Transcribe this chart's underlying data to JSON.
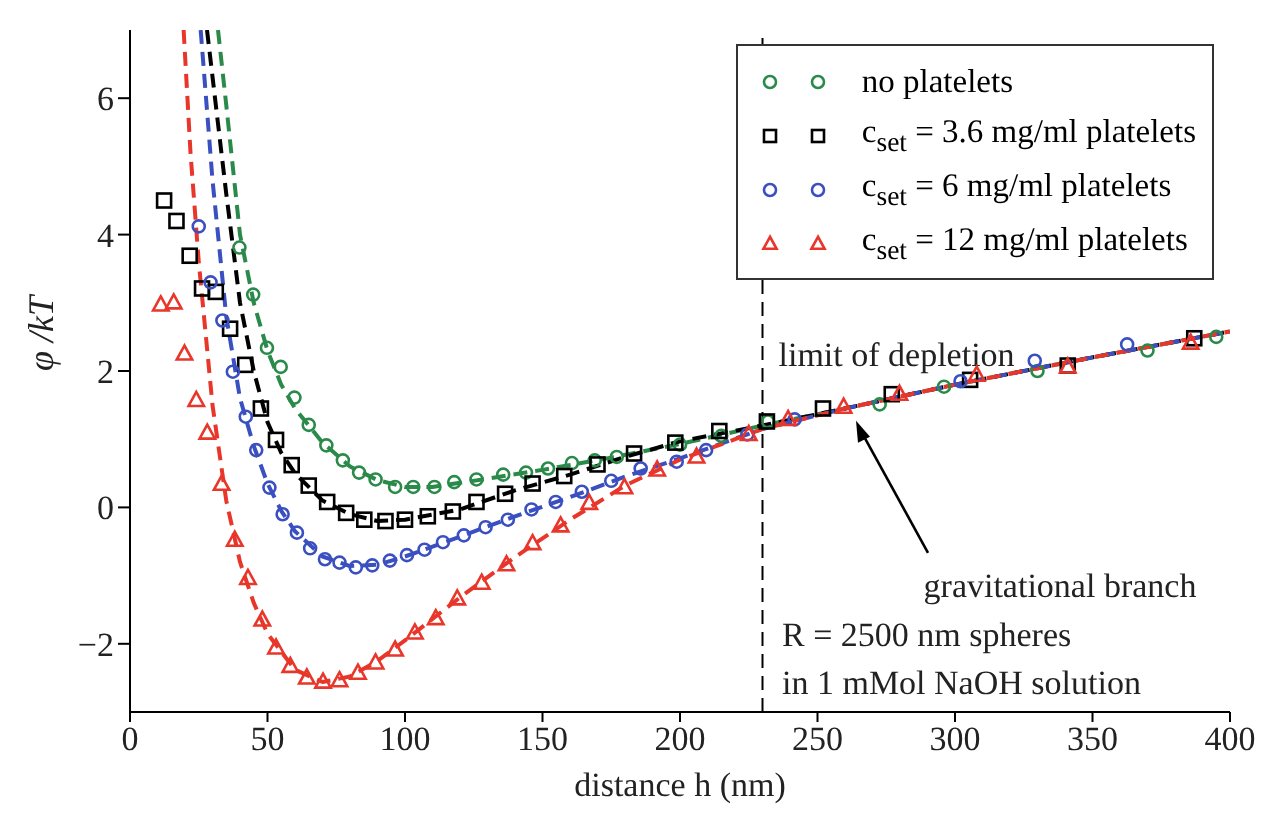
{
  "chart_data": {
    "type": "scatter",
    "xlabel": "distance h (nm)",
    "ylabel": "φ /kT",
    "xlim": [
      0,
      400
    ],
    "ylim": [
      -3,
      7
    ],
    "xticks": [
      0,
      50,
      100,
      150,
      200,
      250,
      300,
      350,
      400
    ],
    "yticks": [
      -2,
      0,
      2,
      4,
      6
    ],
    "grid": false,
    "legend": "top right",
    "series": [
      {
        "name": "no platelets",
        "color": "#2a8a4a",
        "marker": "circle",
        "x": [
          39.8,
          44.8,
          49.8,
          54.8,
          59.8,
          65,
          71.4,
          77.4,
          83.3,
          89.3,
          96.4,
          103,
          110.7,
          117.9,
          126,
          135.7,
          144,
          152,
          160.7,
          169,
          177,
          200,
          215,
          232,
          272.6,
          296,
          330,
          370,
          395
        ],
        "values": [
          3.81,
          3.12,
          2.34,
          2.06,
          1.61,
          1.21,
          0.91,
          0.69,
          0.51,
          0.41,
          0.3,
          0.3,
          0.3,
          0.37,
          0.41,
          0.48,
          0.51,
          0.57,
          0.65,
          0.69,
          0.74,
          0.92,
          1.05,
          1.26,
          1.51,
          1.77,
          2.0,
          2.3,
          2.5
        ]
      },
      {
        "name": "c$_{set}$ = 3.6 mg/ml platelets",
        "color": "#000000",
        "marker": "square",
        "x": [
          12.4,
          16.9,
          21.7,
          26.2,
          31.2,
          36.4,
          41.9,
          47.6,
          53.1,
          58.8,
          65,
          71.7,
          78.6,
          85.2,
          92.9,
          100,
          108.3,
          117.4,
          126,
          136.4,
          146.4,
          157.9,
          170,
          183.3,
          198.3,
          214.3,
          231.6,
          252,
          277,
          305.5,
          341,
          387
        ],
        "values": [
          4.5,
          4.2,
          3.69,
          3.21,
          3.16,
          2.62,
          2.09,
          1.45,
          0.99,
          0.62,
          0.32,
          0.08,
          -0.08,
          -0.18,
          -0.2,
          -0.18,
          -0.13,
          -0.06,
          0.08,
          0.2,
          0.35,
          0.46,
          0.63,
          0.79,
          0.95,
          1.12,
          1.26,
          1.45,
          1.66,
          1.87,
          2.08,
          2.48
        ]
      },
      {
        "name": "c$_{set}$ = 6 mg/ml platelets",
        "color": "#3a4fc0",
        "marker": "circle",
        "x": [
          25,
          29.3,
          33.6,
          37.4,
          42.1,
          45.9,
          50.7,
          55.5,
          60.7,
          65.5,
          70.9,
          76.2,
          82.1,
          88.1,
          94.5,
          100.7,
          107.1,
          113.8,
          121.4,
          129.3,
          137.4,
          146,
          154.8,
          164.3,
          175,
          185.7,
          198.8,
          209.5,
          224.5,
          241.7,
          302,
          329,
          362.6
        ],
        "values": [
          4.12,
          3.3,
          2.74,
          1.99,
          1.33,
          0.84,
          0.29,
          -0.1,
          -0.37,
          -0.6,
          -0.76,
          -0.81,
          -0.88,
          -0.85,
          -0.78,
          -0.7,
          -0.62,
          -0.51,
          -0.41,
          -0.29,
          -0.18,
          -0.03,
          0.08,
          0.23,
          0.39,
          0.57,
          0.67,
          0.84,
          1.07,
          1.29,
          1.85,
          2.15,
          2.39
        ]
      },
      {
        "name": "c$_{set}$ = 12 mg/ml platelets",
        "color": "#e8362a",
        "marker": "triangle",
        "x": [
          11.2,
          15.9,
          19.8,
          24.1,
          28.1,
          33.3,
          38.1,
          42.9,
          48.1,
          53.1,
          58.3,
          64.3,
          70.2,
          76.2,
          82.9,
          89.3,
          96.4,
          103.6,
          111.2,
          119,
          127.9,
          136.9,
          146.4,
          156.6,
          167,
          179.8,
          191.7,
          206,
          225,
          239.3,
          259.5,
          279.8,
          307.9,
          341,
          385.7
        ],
        "values": [
          2.97,
          3.0,
          2.25,
          1.57,
          1.09,
          0.34,
          -0.48,
          -1.04,
          -1.65,
          -2.06,
          -2.33,
          -2.5,
          -2.56,
          -2.54,
          -2.43,
          -2.28,
          -2.09,
          -1.84,
          -1.63,
          -1.34,
          -1.11,
          -0.84,
          -0.53,
          -0.27,
          0.06,
          0.29,
          0.55,
          0.74,
          1.07,
          1.29,
          1.47,
          1.66,
          1.94,
          2.06,
          2.41
        ]
      },
      {
        "type": "line",
        "color": "#2a8a4a",
        "marker": "none",
        "line_style": "dashed",
        "x": [
          32,
          35,
          40,
          45,
          50,
          55,
          60,
          70,
          80,
          90,
          100,
          110,
          130,
          150,
          175,
          200,
          230,
          260,
          300,
          350,
          400
        ],
        "values": [
          7,
          5.9,
          4.0,
          3.0,
          2.3,
          1.8,
          1.45,
          0.95,
          0.6,
          0.4,
          0.3,
          0.3,
          0.42,
          0.55,
          0.73,
          0.93,
          1.2,
          1.45,
          1.8,
          2.2,
          2.58
        ]
      },
      {
        "type": "line",
        "color": "#000000",
        "marker": "none",
        "line_style": "dashed",
        "x": [
          28,
          35,
          40,
          45,
          50,
          55,
          60,
          70,
          80,
          90,
          100,
          120,
          140,
          160,
          180,
          200,
          230,
          260,
          300,
          350,
          400
        ],
        "values": [
          7,
          4.6,
          3.0,
          2.0,
          1.25,
          0.8,
          0.5,
          0.1,
          -0.1,
          -0.2,
          -0.18,
          -0.03,
          0.25,
          0.48,
          0.74,
          0.97,
          1.2,
          1.45,
          1.8,
          2.2,
          2.58
        ]
      },
      {
        "type": "line",
        "color": "#3a4fc0",
        "marker": "none",
        "line_style": "dashed",
        "x": [
          25.7,
          30,
          35,
          40,
          45,
          50,
          55,
          60,
          70,
          80,
          90,
          100,
          120,
          140,
          160,
          180,
          200,
          230,
          260,
          300,
          350,
          400
        ],
        "values": [
          7,
          4.8,
          2.8,
          1.6,
          0.9,
          0.35,
          -0.05,
          -0.35,
          -0.72,
          -0.86,
          -0.84,
          -0.72,
          -0.43,
          -0.13,
          0.15,
          0.45,
          0.72,
          1.15,
          1.45,
          1.8,
          2.2,
          2.58
        ]
      },
      {
        "type": "line",
        "color": "#e8362a",
        "marker": "none",
        "line_style": "dashed",
        "x": [
          19.5,
          22,
          25,
          30,
          35,
          40,
          45,
          50,
          60,
          70,
          80,
          90,
          100,
          120,
          140,
          160,
          180,
          200,
          230,
          260,
          300,
          350,
          400
        ],
        "values": [
          7,
          5.2,
          3.6,
          1.5,
          0.1,
          -0.8,
          -1.4,
          -1.85,
          -2.38,
          -2.56,
          -2.48,
          -2.25,
          -1.95,
          -1.32,
          -0.73,
          -0.18,
          0.32,
          0.7,
          1.15,
          1.45,
          1.8,
          2.2,
          2.58
        ]
      }
    ],
    "ref_lines": [
      {
        "axis": "x",
        "value": 230,
        "label": "limit of depletion",
        "color": "#000000",
        "line_style": "dashed"
      }
    ],
    "annotations": [
      {
        "text": "gravitational branch",
        "x": 264,
        "y": 1.27
      },
      "R = 2500 nm spheres",
      "in 1 mMol NaOH solution"
    ]
  }
}
